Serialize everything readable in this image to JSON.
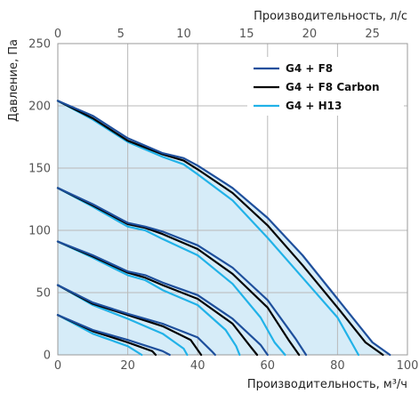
{
  "chart_data": {
    "type": "line",
    "title": "",
    "xlabel": "Производительность, м³/ч",
    "ylabel": "Давление, Па",
    "x2label": "Производительность, л/с",
    "xlim": [
      0,
      100
    ],
    "ylim": [
      0,
      250
    ],
    "x2lim": [
      0,
      27.78
    ],
    "xticks": [
      "0",
      "20",
      "40",
      "60",
      "80",
      "100"
    ],
    "yticks": [
      "0",
      "50",
      "100",
      "150",
      "200",
      "250"
    ],
    "x2ticks": [
      "0",
      "5",
      "10",
      "15",
      "20",
      "25"
    ],
    "grid": true,
    "legend_position": "top-right",
    "fill_color": "#d6ecf8",
    "series": [
      {
        "name": "G4 + F8",
        "color": "#1e4f9c",
        "curves": [
          [
            [
              0,
              204
            ],
            [
              10,
              192
            ],
            [
              20,
              174
            ],
            [
              30,
              162
            ],
            [
              36,
              158
            ],
            [
              40,
              152
            ],
            [
              50,
              134
            ],
            [
              60,
              110
            ],
            [
              70,
              80
            ],
            [
              80,
              45
            ],
            [
              90,
              10
            ],
            [
              95,
              0
            ]
          ],
          [
            [
              0,
              134
            ],
            [
              10,
              121
            ],
            [
              20,
              106
            ],
            [
              25,
              103
            ],
            [
              30,
              99
            ],
            [
              40,
              88
            ],
            [
              50,
              70
            ],
            [
              60,
              44
            ],
            [
              68,
              13
            ],
            [
              71,
              0
            ]
          ],
          [
            [
              0,
              91
            ],
            [
              10,
              80
            ],
            [
              20,
              67
            ],
            [
              25,
              64
            ],
            [
              30,
              58
            ],
            [
              40,
              48
            ],
            [
              50,
              29
            ],
            [
              58,
              8
            ],
            [
              60,
              0
            ]
          ],
          [
            [
              0,
              56
            ],
            [
              10,
              42
            ],
            [
              20,
              33
            ],
            [
              30,
              25
            ],
            [
              40,
              14
            ],
            [
              44,
              3
            ],
            [
              45,
              0
            ]
          ],
          [
            [
              0,
              32
            ],
            [
              10,
              20
            ],
            [
              20,
              12
            ],
            [
              30,
              3
            ],
            [
              32,
              0
            ]
          ]
        ]
      },
      {
        "name": "G4 + F8 Carbon",
        "color": "#000000",
        "curves": [
          [
            [
              0,
              204
            ],
            [
              10,
              190
            ],
            [
              20,
              172
            ],
            [
              30,
              161
            ],
            [
              36,
              156
            ],
            [
              40,
              149
            ],
            [
              50,
              130
            ],
            [
              60,
              104
            ],
            [
              70,
              72
            ],
            [
              80,
              38
            ],
            [
              88,
              10
            ],
            [
              93,
              0
            ]
          ],
          [
            [
              0,
              134
            ],
            [
              10,
              120
            ],
            [
              20,
              105
            ],
            [
              25,
              102
            ],
            [
              30,
              97
            ],
            [
              40,
              85
            ],
            [
              50,
              65
            ],
            [
              60,
              38
            ],
            [
              66,
              12
            ],
            [
              69,
              0
            ]
          ],
          [
            [
              0,
              91
            ],
            [
              10,
              79
            ],
            [
              20,
              66
            ],
            [
              25,
              62
            ],
            [
              30,
              56
            ],
            [
              40,
              45
            ],
            [
              50,
              25
            ],
            [
              55,
              7
            ],
            [
              57,
              0
            ]
          ],
          [
            [
              0,
              56
            ],
            [
              10,
              41
            ],
            [
              20,
              32
            ],
            [
              30,
              23
            ],
            [
              38,
              12
            ],
            [
              41,
              0
            ]
          ],
          [
            [
              0,
              32
            ],
            [
              10,
              19
            ],
            [
              20,
              10
            ],
            [
              27,
              3
            ],
            [
              28,
              0
            ]
          ]
        ]
      },
      {
        "name": "G4 + H13",
        "color": "#21b2e8",
        "curves": [
          [
            [
              0,
              204
            ],
            [
              10,
              189
            ],
            [
              20,
              171
            ],
            [
              30,
              159
            ],
            [
              36,
              153
            ],
            [
              40,
              145
            ],
            [
              50,
              124
            ],
            [
              60,
              94
            ],
            [
              70,
              62
            ],
            [
              80,
              30
            ],
            [
              84,
              10
            ],
            [
              86,
              0
            ]
          ],
          [
            [
              0,
              134
            ],
            [
              10,
              119
            ],
            [
              20,
              103
            ],
            [
              25,
              100
            ],
            [
              30,
              93
            ],
            [
              40,
              80
            ],
            [
              50,
              57
            ],
            [
              58,
              30
            ],
            [
              62,
              10
            ],
            [
              65,
              0
            ]
          ],
          [
            [
              0,
              91
            ],
            [
              10,
              78
            ],
            [
              20,
              64
            ],
            [
              25,
              60
            ],
            [
              30,
              52
            ],
            [
              40,
              40
            ],
            [
              48,
              20
            ],
            [
              51,
              7
            ],
            [
              52,
              0
            ]
          ],
          [
            [
              0,
              56
            ],
            [
              10,
              40
            ],
            [
              20,
              29
            ],
            [
              30,
              17
            ],
            [
              36,
              5
            ],
            [
              37,
              0
            ]
          ],
          [
            [
              0,
              32
            ],
            [
              10,
              17
            ],
            [
              20,
              7
            ],
            [
              24,
              0
            ]
          ]
        ]
      }
    ]
  }
}
